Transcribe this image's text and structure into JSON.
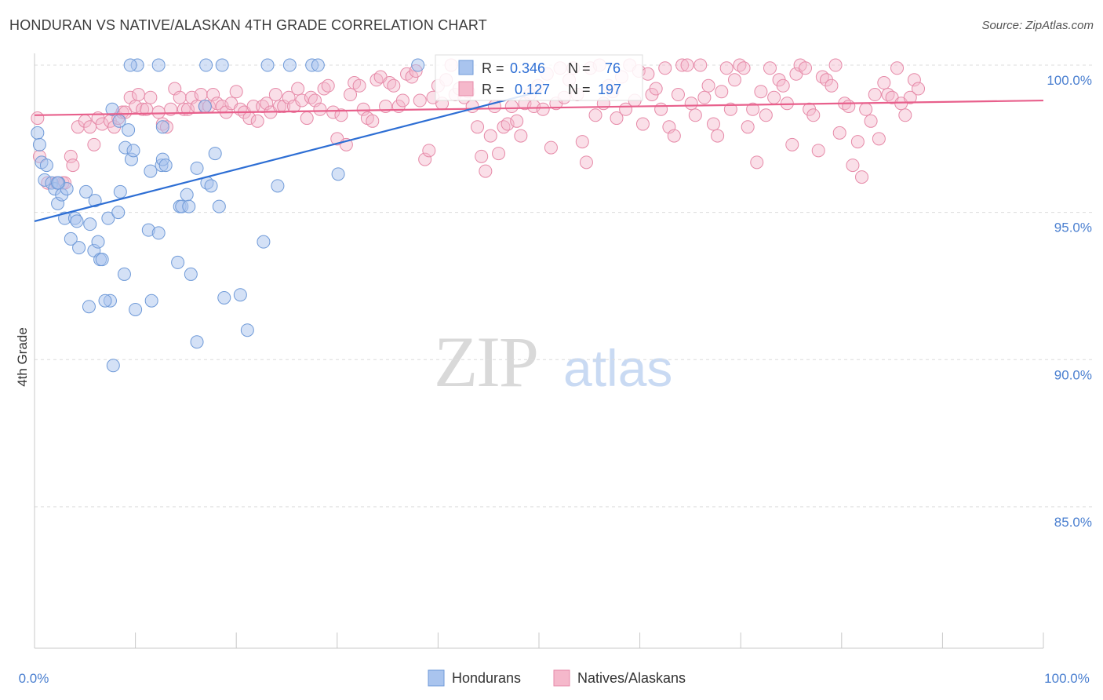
{
  "title": "HONDURAN VS NATIVE/ALASKAN 4TH GRADE CORRELATION CHART",
  "source": "Source: ZipAtlas.com",
  "watermark": {
    "zip": "ZIP",
    "atlas": "atlas"
  },
  "colors": {
    "blue_fill": "#a9c4ee",
    "blue_stroke": "#6f9ad8",
    "blue_line": "#2d6ed4",
    "pink_fill": "#f5b8cb",
    "pink_stroke": "#e68aa8",
    "pink_line": "#e8608c",
    "axis_text": "#4a7fd0",
    "grid": "#dcdcdc"
  },
  "stats_box": {
    "rows": [
      {
        "r_label": "R =",
        "r_value": "0.346",
        "n_label": "N =",
        "n_value": "76"
      },
      {
        "r_label": "R =",
        "r_value": "0.127",
        "n_label": "N =",
        "n_value": "197"
      }
    ]
  },
  "legend": {
    "items": [
      {
        "label": "Hondurans"
      },
      {
        "label": "Natives/Alaskans"
      }
    ]
  },
  "chart_data": {
    "type": "scatter",
    "title": "HONDURAN VS NATIVE/ALASKAN 4TH GRADE CORRELATION CHART",
    "xlabel": "",
    "ylabel": "4th Grade",
    "xlim": [
      0,
      100
    ],
    "ylim": [
      80.2,
      100.4
    ],
    "x_tick_labels": [
      "0.0%",
      "100.0%"
    ],
    "y_ticks": [
      85,
      90,
      95,
      100
    ],
    "y_tick_labels": [
      "85.0%",
      "90.0%",
      "95.0%",
      "100.0%"
    ],
    "grid": true,
    "legend_position": "bottom-center",
    "series": [
      {
        "name": "Hondurans",
        "color": "blue",
        "trend": {
          "x": [
            0,
            50
          ],
          "y": [
            94.7,
            99.1
          ]
        },
        "points": [
          [
            0.3,
            97.7
          ],
          [
            0.5,
            97.3
          ],
          [
            0.7,
            96.7
          ],
          [
            1.2,
            96.6
          ],
          [
            1.0,
            96.1
          ],
          [
            1.7,
            96.0
          ],
          [
            2.0,
            95.8
          ],
          [
            2.4,
            96.0
          ],
          [
            2.3,
            95.3
          ],
          [
            2.7,
            95.6
          ],
          [
            3.2,
            95.8
          ],
          [
            3.0,
            94.8
          ],
          [
            4.0,
            94.8
          ],
          [
            4.2,
            94.7
          ],
          [
            5.1,
            95.7
          ],
          [
            5.5,
            94.6
          ],
          [
            6.0,
            95.4
          ],
          [
            4.4,
            93.8
          ],
          [
            3.6,
            94.1
          ],
          [
            5.9,
            93.7
          ],
          [
            6.5,
            93.4
          ],
          [
            6.7,
            93.4
          ],
          [
            7.3,
            94.8
          ],
          [
            7.5,
            92.0
          ],
          [
            8.3,
            95.0
          ],
          [
            8.5,
            95.7
          ],
          [
            8.9,
            92.9
          ],
          [
            10.0,
            91.7
          ],
          [
            11.3,
            94.4
          ],
          [
            11.6,
            92.0
          ],
          [
            12.3,
            94.3
          ],
          [
            12.6,
            96.6
          ],
          [
            12.7,
            97.9
          ],
          [
            14.2,
            93.3
          ],
          [
            14.4,
            95.2
          ],
          [
            14.6,
            95.2
          ],
          [
            15.1,
            95.6
          ],
          [
            15.3,
            95.2
          ],
          [
            15.5,
            92.9
          ],
          [
            16.1,
            90.6
          ],
          [
            16.1,
            96.5
          ],
          [
            17.1,
            96.0
          ],
          [
            17.5,
            95.9
          ],
          [
            17.9,
            97.0
          ],
          [
            18.3,
            95.2
          ],
          [
            18.8,
            92.1
          ],
          [
            20.4,
            92.2
          ],
          [
            21.1,
            91.0
          ],
          [
            22.7,
            94.0
          ],
          [
            24.1,
            95.9
          ],
          [
            30.1,
            96.3
          ],
          [
            7.7,
            98.5
          ],
          [
            8.4,
            98.1
          ],
          [
            9.3,
            97.8
          ],
          [
            9.0,
            97.2
          ],
          [
            9.6,
            96.8
          ],
          [
            9.8,
            97.1
          ],
          [
            11.5,
            96.4
          ],
          [
            12.7,
            96.8
          ],
          [
            13.0,
            96.6
          ],
          [
            12.3,
            100.0
          ],
          [
            10.2,
            100.0
          ],
          [
            9.5,
            100.0
          ],
          [
            17.0,
            100.0
          ],
          [
            18.6,
            100.0
          ],
          [
            23.1,
            100.0
          ],
          [
            25.3,
            100.0
          ],
          [
            27.5,
            100.0
          ],
          [
            28.1,
            100.0
          ],
          [
            38.0,
            100.0
          ],
          [
            16.9,
            98.6
          ],
          [
            7.0,
            92.0
          ],
          [
            7.8,
            89.8
          ],
          [
            5.4,
            91.8
          ],
          [
            6.3,
            94.0
          ],
          [
            2.3,
            96.0
          ]
        ]
      },
      {
        "name": "Natives/Alaskans",
        "color": "pink",
        "trend": {
          "x": [
            0,
            100
          ],
          "y": [
            98.3,
            98.8
          ]
        },
        "points": [
          [
            0.3,
            98.2
          ],
          [
            0.5,
            96.9
          ],
          [
            1.3,
            96.0
          ],
          [
            2.2,
            96.0
          ],
          [
            2.8,
            96.0
          ],
          [
            3.0,
            96.0
          ],
          [
            3.6,
            96.9
          ],
          [
            3.8,
            96.6
          ],
          [
            4.3,
            97.9
          ],
          [
            5.0,
            98.1
          ],
          [
            5.5,
            97.9
          ],
          [
            5.9,
            97.3
          ],
          [
            6.3,
            98.2
          ],
          [
            6.7,
            98.0
          ],
          [
            7.5,
            98.1
          ],
          [
            7.9,
            97.9
          ],
          [
            8.3,
            98.2
          ],
          [
            8.7,
            98.4
          ],
          [
            9.0,
            98.4
          ],
          [
            9.5,
            98.9
          ],
          [
            10.0,
            98.6
          ],
          [
            10.3,
            99.0
          ],
          [
            10.7,
            98.5
          ],
          [
            11.1,
            98.5
          ],
          [
            11.5,
            98.9
          ],
          [
            12.3,
            98.4
          ],
          [
            12.7,
            98.0
          ],
          [
            13.1,
            97.9
          ],
          [
            13.5,
            98.5
          ],
          [
            13.9,
            99.2
          ],
          [
            14.4,
            98.9
          ],
          [
            14.8,
            98.5
          ],
          [
            15.2,
            98.5
          ],
          [
            15.6,
            98.9
          ],
          [
            16.1,
            98.6
          ],
          [
            16.5,
            99.0
          ],
          [
            16.9,
            98.6
          ],
          [
            17.3,
            98.6
          ],
          [
            17.7,
            99.0
          ],
          [
            18.1,
            98.7
          ],
          [
            18.6,
            98.6
          ],
          [
            19.0,
            98.4
          ],
          [
            19.5,
            98.7
          ],
          [
            20.0,
            99.1
          ],
          [
            20.4,
            98.5
          ],
          [
            20.8,
            98.4
          ],
          [
            21.3,
            98.2
          ],
          [
            21.7,
            98.6
          ],
          [
            22.1,
            98.1
          ],
          [
            22.6,
            98.6
          ],
          [
            23.0,
            98.7
          ],
          [
            23.4,
            98.4
          ],
          [
            23.9,
            99.0
          ],
          [
            24.3,
            98.6
          ],
          [
            24.7,
            98.6
          ],
          [
            25.2,
            98.9
          ],
          [
            25.7,
            98.6
          ],
          [
            26.1,
            99.2
          ],
          [
            26.5,
            98.8
          ],
          [
            27.0,
            98.2
          ],
          [
            27.4,
            98.9
          ],
          [
            27.8,
            98.8
          ],
          [
            28.3,
            98.5
          ],
          [
            28.7,
            99.2
          ],
          [
            29.1,
            99.3
          ],
          [
            29.6,
            98.4
          ],
          [
            30.0,
            97.5
          ],
          [
            30.4,
            98.3
          ],
          [
            30.9,
            97.3
          ],
          [
            31.3,
            99.0
          ],
          [
            31.7,
            99.4
          ],
          [
            32.2,
            99.3
          ],
          [
            32.6,
            98.5
          ],
          [
            33.0,
            98.2
          ],
          [
            33.5,
            98.1
          ],
          [
            33.9,
            99.5
          ],
          [
            34.3,
            99.6
          ],
          [
            34.8,
            98.6
          ],
          [
            35.2,
            99.4
          ],
          [
            35.6,
            99.3
          ],
          [
            36.1,
            98.6
          ],
          [
            36.5,
            98.8
          ],
          [
            36.9,
            99.7
          ],
          [
            37.4,
            99.6
          ],
          [
            37.8,
            99.8
          ],
          [
            38.2,
            98.8
          ],
          [
            38.7,
            96.8
          ],
          [
            39.1,
            97.1
          ],
          [
            39.5,
            98.9
          ],
          [
            40.0,
            99.3
          ],
          [
            40.4,
            98.7
          ],
          [
            40.8,
            99.5
          ],
          [
            41.3,
            100.0
          ],
          [
            41.7,
            99.0
          ],
          [
            42.1,
            99.2
          ],
          [
            42.6,
            98.9
          ],
          [
            43.0,
            99.1
          ],
          [
            43.4,
            98.6
          ],
          [
            43.9,
            97.9
          ],
          [
            44.3,
            96.9
          ],
          [
            44.7,
            96.4
          ],
          [
            45.2,
            97.6
          ],
          [
            45.6,
            98.6
          ],
          [
            46.0,
            97.0
          ],
          [
            46.5,
            97.9
          ],
          [
            46.9,
            98.0
          ],
          [
            47.3,
            98.6
          ],
          [
            47.8,
            98.1
          ],
          [
            48.2,
            97.6
          ],
          [
            48.6,
            98.7
          ],
          [
            49.1,
            99.0
          ],
          [
            49.5,
            98.6
          ],
          [
            49.9,
            99.3
          ],
          [
            50.4,
            98.5
          ],
          [
            50.8,
            99.7
          ],
          [
            51.2,
            97.2
          ],
          [
            51.7,
            98.7
          ],
          [
            52.1,
            99.9
          ],
          [
            52.5,
            98.9
          ],
          [
            53.0,
            99.5
          ],
          [
            53.4,
            99.9
          ],
          [
            53.8,
            99.0
          ],
          [
            54.3,
            97.4
          ],
          [
            54.7,
            96.7
          ],
          [
            55.1,
            99.9
          ],
          [
            55.6,
            98.3
          ],
          [
            56.0,
            100.0
          ],
          [
            56.4,
            98.7
          ],
          [
            56.9,
            99.3
          ],
          [
            57.3,
            99.1
          ],
          [
            57.7,
            98.2
          ],
          [
            58.2,
            99.6
          ],
          [
            58.6,
            98.5
          ],
          [
            59.0,
            100.0
          ],
          [
            59.5,
            98.8
          ],
          [
            59.9,
            99.8
          ],
          [
            60.3,
            98.0
          ],
          [
            60.8,
            99.7
          ],
          [
            61.2,
            99.0
          ],
          [
            61.6,
            99.2
          ],
          [
            62.1,
            98.5
          ],
          [
            62.5,
            99.9
          ],
          [
            62.9,
            97.9
          ],
          [
            63.4,
            97.6
          ],
          [
            63.8,
            99.0
          ],
          [
            64.2,
            100.0
          ],
          [
            64.7,
            100.0
          ],
          [
            65.1,
            98.7
          ],
          [
            65.5,
            98.3
          ],
          [
            66.0,
            100.0
          ],
          [
            66.4,
            98.9
          ],
          [
            66.8,
            99.3
          ],
          [
            67.3,
            98.0
          ],
          [
            67.7,
            97.6
          ],
          [
            68.1,
            99.1
          ],
          [
            68.6,
            99.9
          ],
          [
            69.0,
            98.5
          ],
          [
            69.4,
            99.5
          ],
          [
            69.9,
            100.0
          ],
          [
            70.3,
            99.9
          ],
          [
            70.7,
            97.9
          ],
          [
            71.2,
            98.5
          ],
          [
            71.6,
            96.7
          ],
          [
            72.0,
            99.1
          ],
          [
            72.5,
            98.3
          ],
          [
            72.9,
            99.9
          ],
          [
            73.3,
            98.9
          ],
          [
            73.8,
            99.5
          ],
          [
            74.2,
            99.3
          ],
          [
            74.6,
            98.7
          ],
          [
            75.1,
            97.3
          ],
          [
            75.5,
            99.7
          ],
          [
            75.9,
            100.0
          ],
          [
            76.4,
            99.9
          ],
          [
            76.8,
            98.5
          ],
          [
            77.2,
            98.3
          ],
          [
            77.7,
            97.1
          ],
          [
            78.1,
            99.6
          ],
          [
            78.5,
            99.5
          ],
          [
            79.0,
            99.3
          ],
          [
            79.4,
            100.0
          ],
          [
            79.8,
            97.7
          ],
          [
            80.3,
            98.7
          ],
          [
            80.7,
            98.6
          ],
          [
            81.1,
            96.6
          ],
          [
            81.6,
            97.4
          ],
          [
            82.0,
            96.2
          ],
          [
            82.4,
            98.5
          ],
          [
            82.9,
            98.1
          ],
          [
            83.3,
            99.0
          ],
          [
            83.7,
            97.5
          ],
          [
            84.2,
            99.4
          ],
          [
            84.6,
            99.0
          ],
          [
            85.0,
            98.9
          ],
          [
            85.5,
            99.9
          ],
          [
            85.9,
            98.7
          ],
          [
            86.3,
            98.3
          ],
          [
            86.8,
            98.9
          ],
          [
            87.2,
            99.5
          ],
          [
            87.6,
            99.2
          ]
        ]
      }
    ]
  }
}
